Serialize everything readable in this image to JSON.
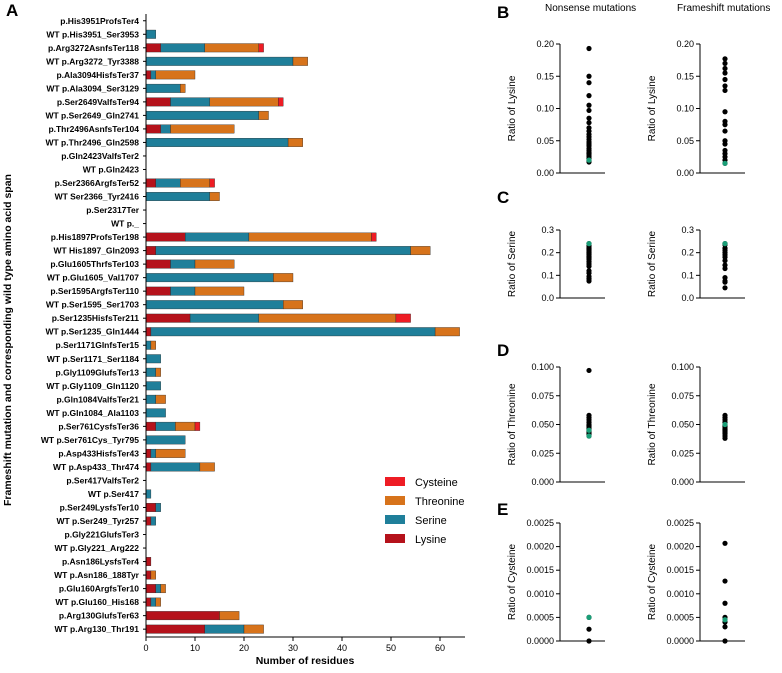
{
  "chart_data": [
    {
      "type": "bar",
      "stacked": true,
      "orientation": "horizontal",
      "panel_label": "A",
      "xlabel": "Number of residues",
      "ylabel": "Frameshift mutation and corresponding wild type amino acid span",
      "xlim": [
        0,
        65
      ],
      "xticks": [
        0,
        10,
        20,
        30,
        40,
        50,
        60
      ],
      "legend_position": "bottom-right",
      "legend_order": [
        "Cysteine",
        "Threonine",
        "Serine",
        "Lysine"
      ],
      "colors": {
        "Lysine": "#b5121b",
        "Serine": "#1f7f9a",
        "Threonine": "#d7731b",
        "Cysteine": "#ee1c24"
      },
      "categories": [
        "p.His3951ProfsTer4",
        "WT p.His3951_Ser3953",
        "p.Arg3272AsnfsTer118",
        "WT p.Arg3272_Tyr3388",
        "p.Ala3094HisfsTer37",
        "WT p.Ala3094_Ser3129",
        "p.Ser2649ValfsTer94",
        "WT p.Ser2649_Gln2741",
        "p.Thr2496AsnfsTer104",
        "WT p.Thr2496_Gln2598",
        "p.Gln2423ValfsTer2",
        "WT p.Gln2423",
        "p.Ser2366ArgfsTer52",
        "WT Ser2366_Tyr2416",
        "p.Ser2317Ter",
        "WT p._",
        "p.His1897ProfsTer198",
        "WT His1897_Gln2093",
        "p.Glu1605ThrfsTer103",
        "WT p.Glu1605_Val1707",
        "p.Ser1595ArgfsTer110",
        "WT p.Ser1595_Ser1703",
        "p.Ser1235HisfsTer211",
        "WT p.Ser1235_Gln1444",
        "p.Ser1171GlnfsTer15",
        "WT p.Ser1171_Ser1184",
        "p.Gly1109GlufsTer13",
        "WT p.Gly1109_Gln1120",
        "p.Gln1084ValfsTer21",
        "WT p.Gln1084_Ala1103",
        "p.Ser761CysfsTer36",
        "WT p.Ser761Cys_Tyr795",
        "p.Asp433HisfsTer43",
        "WT p.Asp433_Thr474",
        "p.Ser417ValfsTer2",
        "WT p.Ser417",
        "p.Ser249LysfsTer10",
        "WT p.Ser249_Tyr257",
        "p.Gly221GlufsTer3",
        "WT p.Gly221_Arg222",
        "p.Asn186LysfsTer4",
        "WT p.Asn186_188Tyr",
        "p.Glu160ArgfsTer10",
        "WT p.Glu160_His168",
        "p.Arg130GlufsTer63",
        "WT p.Arg130_Thr191"
      ],
      "series": [
        {
          "name": "Lysine",
          "values": [
            0,
            0,
            3,
            0,
            1,
            0,
            5,
            0,
            3,
            0,
            0,
            0,
            2,
            0,
            0,
            0,
            8,
            2,
            5,
            0,
            5,
            0,
            9,
            1,
            0,
            0,
            0,
            0,
            0,
            0,
            2,
            0,
            1,
            1,
            0,
            0,
            2,
            1,
            0,
            0,
            1,
            1,
            2,
            1,
            15,
            12
          ]
        },
        {
          "name": "Serine",
          "values": [
            0,
            2,
            9,
            30,
            1,
            7,
            8,
            23,
            2,
            29,
            0,
            0,
            5,
            13,
            0,
            0,
            13,
            52,
            5,
            26,
            5,
            28,
            14,
            58,
            1,
            3,
            2,
            3,
            2,
            4,
            4,
            8,
            1,
            10,
            0,
            1,
            1,
            1,
            0,
            0,
            0,
            0,
            1,
            1,
            0,
            8
          ]
        },
        {
          "name": "Threonine",
          "values": [
            0,
            0,
            11,
            3,
            8,
            1,
            14,
            2,
            13,
            3,
            0,
            0,
            6,
            2,
            0,
            0,
            25,
            4,
            8,
            4,
            10,
            4,
            28,
            5,
            1,
            0,
            1,
            0,
            2,
            0,
            4,
            0,
            6,
            3,
            0,
            0,
            0,
            0,
            0,
            0,
            0,
            1,
            1,
            1,
            4,
            4
          ]
        },
        {
          "name": "Cysteine",
          "values": [
            0,
            0,
            1,
            0,
            0,
            0,
            1,
            0,
            0,
            0,
            0,
            0,
            1,
            0,
            0,
            0,
            1,
            0,
            0,
            0,
            0,
            0,
            3,
            0,
            0,
            0,
            0,
            0,
            0,
            0,
            1,
            0,
            0,
            0,
            0,
            0,
            0,
            0,
            0,
            0,
            0,
            0,
            0,
            0,
            0,
            0
          ]
        }
      ]
    },
    {
      "type": "scatter",
      "panel_label": "B",
      "column_title": "Nonsense mutations",
      "ylabel": "Ratio of Lysine",
      "ylim": [
        0,
        0.2
      ],
      "yticks": [
        "0.00",
        "0.05",
        "0.10",
        "0.15",
        "0.20"
      ],
      "points": [
        0.193,
        0.15,
        0.14,
        0.12,
        0.105,
        0.097,
        0.085,
        0.078,
        0.07,
        0.065,
        0.06,
        0.056,
        0.052,
        0.048,
        0.045,
        0.042,
        0.038,
        0.035,
        0.032,
        0.03,
        0.028,
        0.025,
        0.022,
        0.02,
        0.017
      ],
      "highlight": [
        0.02
      ]
    },
    {
      "type": "scatter",
      "panel_label": "B",
      "column_title": "Frameshift mutations",
      "ylabel": "Ratio of Lysine",
      "ylim": [
        0,
        0.2
      ],
      "yticks": [
        "0.00",
        "0.05",
        "0.10",
        "0.15",
        "0.20"
      ],
      "points": [
        0.177,
        0.17,
        0.162,
        0.155,
        0.145,
        0.135,
        0.128,
        0.095,
        0.08,
        0.075,
        0.065,
        0.05,
        0.045,
        0.035,
        0.03,
        0.025,
        0.02,
        0.015
      ],
      "highlight": [
        0.015
      ]
    },
    {
      "type": "scatter",
      "panel_label": "C",
      "ylabel": "Ratio of Serine",
      "ylim": [
        0,
        0.3
      ],
      "yticks": [
        "0.0",
        "0.1",
        "0.2",
        "0.3"
      ],
      "points": [
        0.24,
        0.23,
        0.225,
        0.22,
        0.215,
        0.21,
        0.205,
        0.2,
        0.195,
        0.19,
        0.185,
        0.18,
        0.175,
        0.17,
        0.16,
        0.15,
        0.14,
        0.12,
        0.11,
        0.095,
        0.085,
        0.075
      ],
      "highlight": [
        0.24
      ]
    },
    {
      "type": "scatter",
      "panel_label": "C",
      "ylabel": "Ratio of Serine",
      "ylim": [
        0,
        0.3
      ],
      "yticks": [
        "0.0",
        "0.1",
        "0.2",
        "0.3"
      ],
      "points": [
        0.24,
        0.235,
        0.22,
        0.21,
        0.2,
        0.19,
        0.18,
        0.165,
        0.145,
        0.13,
        0.09,
        0.075,
        0.07,
        0.045
      ],
      "highlight": [
        0.24
      ]
    },
    {
      "type": "scatter",
      "panel_label": "D",
      "ylabel": "Ratio of Threonine",
      "ylim": [
        0,
        0.1
      ],
      "yticks": [
        "0.000",
        "0.025",
        "0.050",
        "0.075",
        "0.100"
      ],
      "points": [
        0.097,
        0.058,
        0.056,
        0.054,
        0.052,
        0.05,
        0.049,
        0.048,
        0.047,
        0.046,
        0.045,
        0.044,
        0.043,
        0.042,
        0.041,
        0.04
      ],
      "highlight": [
        0.045,
        0.04
      ]
    },
    {
      "type": "scatter",
      "panel_label": "D",
      "ylabel": "Ratio of Threonine",
      "ylim": [
        0,
        0.1
      ],
      "yticks": [
        "0.000",
        "0.025",
        "0.050",
        "0.075",
        "0.100"
      ],
      "points": [
        0.058,
        0.056,
        0.054,
        0.052,
        0.05,
        0.049,
        0.048,
        0.047,
        0.046,
        0.045,
        0.044,
        0.043,
        0.042,
        0.04,
        0.038
      ],
      "highlight": [
        0.05
      ]
    },
    {
      "type": "scatter",
      "panel_label": "E",
      "ylabel": "Ratio of Cysteine",
      "ylim": [
        0,
        0.0025
      ],
      "yticks": [
        "0.0000",
        "0.0005",
        "0.0010",
        "0.0015",
        "0.0020",
        "0.0025"
      ],
      "points": [
        0.0005,
        0.00025,
        0.0
      ],
      "highlight": [
        0.0005
      ]
    },
    {
      "type": "scatter",
      "panel_label": "E",
      "ylabel": "Ratio of Cysteine",
      "ylim": [
        0,
        0.0025
      ],
      "yticks": [
        "0.0000",
        "0.0005",
        "0.0010",
        "0.0015",
        "0.0020",
        "0.0025"
      ],
      "points": [
        0.00207,
        0.00127,
        0.0008,
        0.0005,
        0.0004,
        0.0003,
        0.0
      ],
      "highlight": [
        0.00045
      ]
    }
  ],
  "point_colors": {
    "normal": "#000000",
    "highlight": "#1a9e77"
  }
}
